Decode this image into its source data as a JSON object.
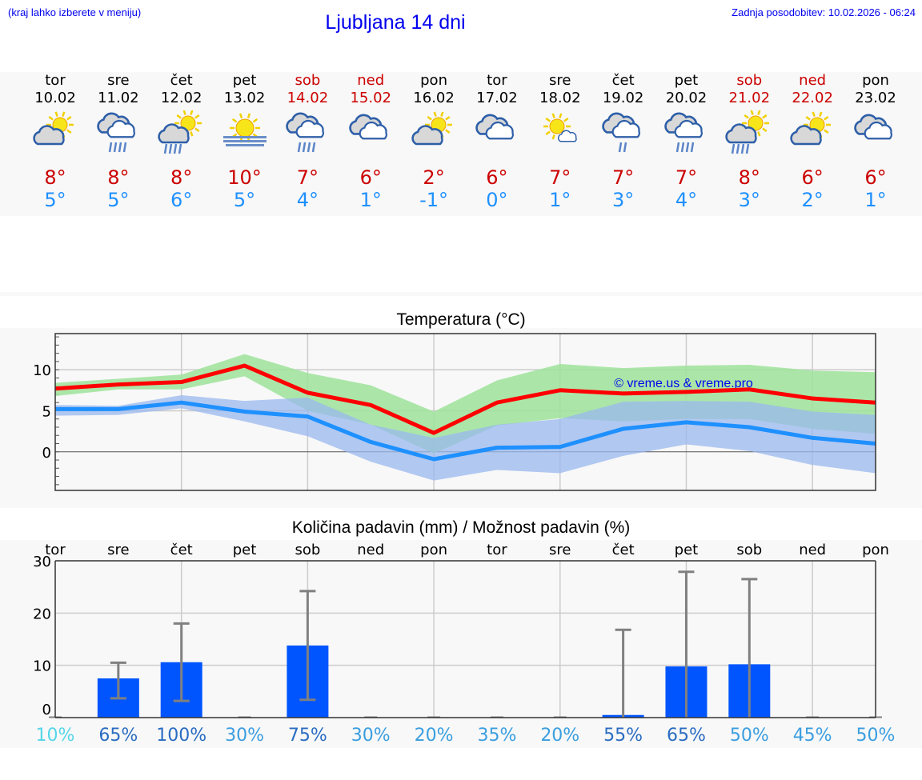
{
  "header": {
    "hint": "(kraj lahko izberete v meniju)",
    "title": "Ljubljana 14 dni",
    "updated": "Zadnja posodobitev: 10.02.2026 - 06:24"
  },
  "colors": {
    "weekday": "#000000",
    "weekend": "#cc0000",
    "tmax": "#cc0000",
    "tmin": "#1e90ff",
    "bar": "#0055ff"
  },
  "days": [
    {
      "name": "tor",
      "date": "10.02",
      "weekend": false,
      "icon": "sun-cloud",
      "max": "8°",
      "min": "5°"
    },
    {
      "name": "sre",
      "date": "11.02",
      "weekend": false,
      "icon": "cloud-rain",
      "max": "8°",
      "min": "5°"
    },
    {
      "name": "čet",
      "date": "12.02",
      "weekend": false,
      "icon": "sun-cloud-rain",
      "max": "8°",
      "min": "6°"
    },
    {
      "name": "pet",
      "date": "13.02",
      "weekend": false,
      "icon": "sun-fog",
      "max": "10°",
      "min": "5°"
    },
    {
      "name": "sob",
      "date": "14.02",
      "weekend": true,
      "icon": "cloud-rain",
      "max": "7°",
      "min": "4°"
    },
    {
      "name": "ned",
      "date": "15.02",
      "weekend": true,
      "icon": "cloud",
      "max": "6°",
      "min": "1°"
    },
    {
      "name": "pon",
      "date": "16.02",
      "weekend": false,
      "icon": "sun-cloud",
      "max": "2°",
      "min": "-1°"
    },
    {
      "name": "tor",
      "date": "17.02",
      "weekend": false,
      "icon": "cloud",
      "max": "6°",
      "min": "0°"
    },
    {
      "name": "sre",
      "date": "18.02",
      "weekend": false,
      "icon": "sun-small-cloud",
      "max": "7°",
      "min": "1°"
    },
    {
      "name": "čet",
      "date": "19.02",
      "weekend": false,
      "icon": "cloud-light-rain",
      "max": "7°",
      "min": "3°"
    },
    {
      "name": "pet",
      "date": "20.02",
      "weekend": false,
      "icon": "cloud-rain",
      "max": "7°",
      "min": "4°"
    },
    {
      "name": "sob",
      "date": "21.02",
      "weekend": true,
      "icon": "sun-cloud-rain",
      "max": "8°",
      "min": "3°"
    },
    {
      "name": "ned",
      "date": "22.02",
      "weekend": true,
      "icon": "sun-cloud",
      "max": "6°",
      "min": "2°"
    },
    {
      "name": "pon",
      "date": "23.02",
      "weekend": false,
      "icon": "cloud",
      "max": "6°",
      "min": "1°"
    }
  ],
  "chart_data": [
    {
      "type": "line",
      "title": "Temperatura (°C)",
      "ylim": [
        -4.7,
        14.4
      ],
      "yticks": [
        0,
        5,
        10
      ],
      "grid": true,
      "watermark": "© vreme.us & vreme.pro",
      "categories": [
        "10.02",
        "11.02",
        "12.02",
        "13.02",
        "14.02",
        "15.02",
        "16.02",
        "17.02",
        "18.02",
        "19.02",
        "20.02",
        "21.02",
        "22.02",
        "23.02"
      ],
      "series": [
        {
          "role": "max",
          "color": "#ff0000",
          "values": [
            7.7,
            8.2,
            8.5,
            10.5,
            7.2,
            5.7,
            2.3,
            6.0,
            7.5,
            7.1,
            7.3,
            7.6,
            6.5,
            6.0
          ],
          "band_color": "#9de39a",
          "band_low": [
            6.8,
            7.6,
            7.6,
            9.2,
            5.0,
            3.3,
            -0.2,
            3.2,
            4.1,
            3.7,
            4.0,
            4.0,
            2.8,
            2.2
          ],
          "band_high": [
            8.4,
            8.9,
            9.4,
            11.9,
            9.6,
            8.1,
            4.9,
            8.7,
            10.7,
            10.2,
            10.5,
            10.6,
            9.9,
            9.7
          ]
        },
        {
          "role": "min",
          "color": "#1e90ff",
          "values": [
            5.2,
            5.2,
            6.0,
            4.9,
            4.3,
            1.2,
            -0.9,
            0.5,
            0.6,
            2.8,
            3.6,
            3.0,
            1.7,
            1.0
          ],
          "band_color": "#9ab8ef",
          "band_low": [
            4.4,
            4.5,
            5.3,
            3.7,
            1.9,
            -1.2,
            -3.5,
            -2.2,
            -2.6,
            -0.5,
            0.9,
            0.1,
            -1.6,
            -2.6
          ],
          "band_high": [
            5.7,
            5.6,
            6.9,
            6.2,
            6.6,
            3.3,
            1.7,
            3.3,
            4.0,
            6.1,
            6.2,
            6.1,
            4.9,
            4.5
          ]
        }
      ]
    },
    {
      "type": "bar",
      "title": "Količina padavin (mm) / Možnost padavin (%)",
      "ylim": [
        0,
        30
      ],
      "yticks": [
        0,
        10,
        20,
        30
      ],
      "grid": true,
      "categories": [
        "tor",
        "sre",
        "čet",
        "pet",
        "sob",
        "ned",
        "pon",
        "tor",
        "sre",
        "čet",
        "pet",
        "sob",
        "ned",
        "pon"
      ],
      "values": [
        0,
        7.5,
        10.6,
        0,
        13.8,
        0,
        0,
        0,
        0,
        0.5,
        9.8,
        10.2,
        0,
        0
      ],
      "error_low": [
        0,
        3.7,
        3.2,
        0,
        3.4,
        0,
        0,
        0,
        0,
        0,
        0,
        0,
        0,
        0
      ],
      "error_high": [
        0,
        10.5,
        18.0,
        0,
        24.2,
        0,
        0,
        0,
        0,
        16.8,
        27.9,
        26.5,
        0,
        0
      ],
      "probability": [
        "10%",
        "65%",
        "100%",
        "30%",
        "75%",
        "30%",
        "20%",
        "35%",
        "20%",
        "55%",
        "65%",
        "50%",
        "45%",
        "50%"
      ],
      "probability_colors": [
        "#55d6e8",
        "#2a6cc2",
        "#2a6cc2",
        "#3a9ee0",
        "#2a6cc2",
        "#3a9ee0",
        "#3a9ee0",
        "#3a9ee0",
        "#3a9ee0",
        "#2a6cc2",
        "#2a6cc2",
        "#3a9ee0",
        "#3a9ee0",
        "#3a9ee0"
      ]
    }
  ]
}
